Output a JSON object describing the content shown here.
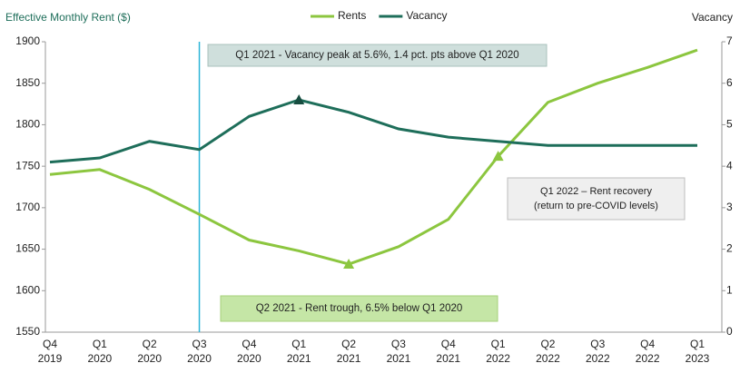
{
  "chart_data": {
    "type": "line",
    "y_label": "Effective Monthly Rent ($)",
    "y2_label": "Vacancy",
    "categories": [
      "Q4 2019",
      "Q1 2020",
      "Q2 2020",
      "Q3 2020",
      "Q4 2020",
      "Q1 2021",
      "Q2 2021",
      "Q3 2021",
      "Q4 2021",
      "Q1 2022",
      "Q2 2022",
      "Q3 2022",
      "Q4 2022",
      "Q1 2023"
    ],
    "series": [
      {
        "name": "Rents",
        "color": "#8cc63f",
        "axis": "y",
        "highlighted": [
          6,
          9
        ],
        "values": [
          1740,
          1746,
          1722,
          1692,
          1661,
          1648,
          1632,
          1653,
          1686,
          1762,
          1827,
          1850,
          1869,
          1890
        ]
      },
      {
        "name": "Vacancy",
        "color": "#1e6e5a",
        "axis": "y2",
        "highlighted": [
          5
        ],
        "values": [
          4.1,
          4.2,
          4.6,
          4.4,
          5.2,
          5.6,
          5.3,
          4.9,
          4.7,
          4.6,
          4.5,
          4.5,
          4.5,
          4.5
        ]
      }
    ],
    "ylim": [
      1550,
      1900
    ],
    "yticks": [
      1550,
      1600,
      1650,
      1700,
      1750,
      1800,
      1850,
      1900
    ],
    "y2lim": [
      0,
      7
    ],
    "y2ticks": [
      0,
      1,
      2,
      3,
      4,
      5,
      6,
      7
    ],
    "reference_line": {
      "category": "Q3 2020",
      "color": "#2cb5d8"
    },
    "annotations": [
      {
        "text": "Q1 2021 - Vacancy peak at 5.6%, 1.4 pct. pts above Q1 2020",
        "background": "#cfdfdc",
        "border": "#a9c2bd"
      },
      {
        "text": "Q2 2021 - Rent trough, 6.5% below Q1 2020",
        "background": "#c5e6a6",
        "border": "#a6d07a"
      },
      {
        "text": "Q1 2022 – Rent recovery",
        "text2": "(return to pre-COVID levels)",
        "background": "#efefef",
        "border": "#bdbdbd"
      }
    ],
    "legend": "top"
  }
}
